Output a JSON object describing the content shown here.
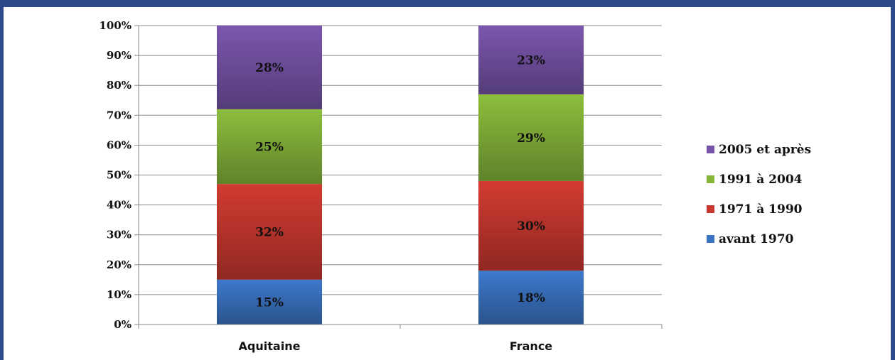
{
  "chart_data": {
    "type": "bar",
    "stacked": true,
    "categories": [
      "Aquitaine",
      "France"
    ],
    "series": [
      {
        "name": "avant 1970",
        "values": [
          15,
          18
        ],
        "color": "#3b73c2"
      },
      {
        "name": "1971 à 1990",
        "values": [
          32,
          30
        ],
        "color": "#c8382f"
      },
      {
        "name": "1991 à 2004",
        "values": [
          25,
          29
        ],
        "color": "#86b53a"
      },
      {
        "name": "2005 et après",
        "values": [
          28,
          23
        ],
        "color": "#7553a6"
      }
    ],
    "data_labels": [
      [
        "15%",
        "18%"
      ],
      [
        "32%",
        "30%"
      ],
      [
        "25%",
        "29%"
      ],
      [
        "28%",
        "23%"
      ]
    ],
    "yticks": [
      "0%",
      "10%",
      "20%",
      "30%",
      "40%",
      "50%",
      "60%",
      "70%",
      "80%",
      "90%",
      "100%"
    ],
    "ylim": [
      0,
      100
    ],
    "grid": true,
    "legend": {
      "placement": "right",
      "order": [
        "2005 et après",
        "1991 à 2004",
        "1971 à 1990",
        "avant 1970"
      ]
    },
    "frame_color": "#2f4a8a"
  }
}
